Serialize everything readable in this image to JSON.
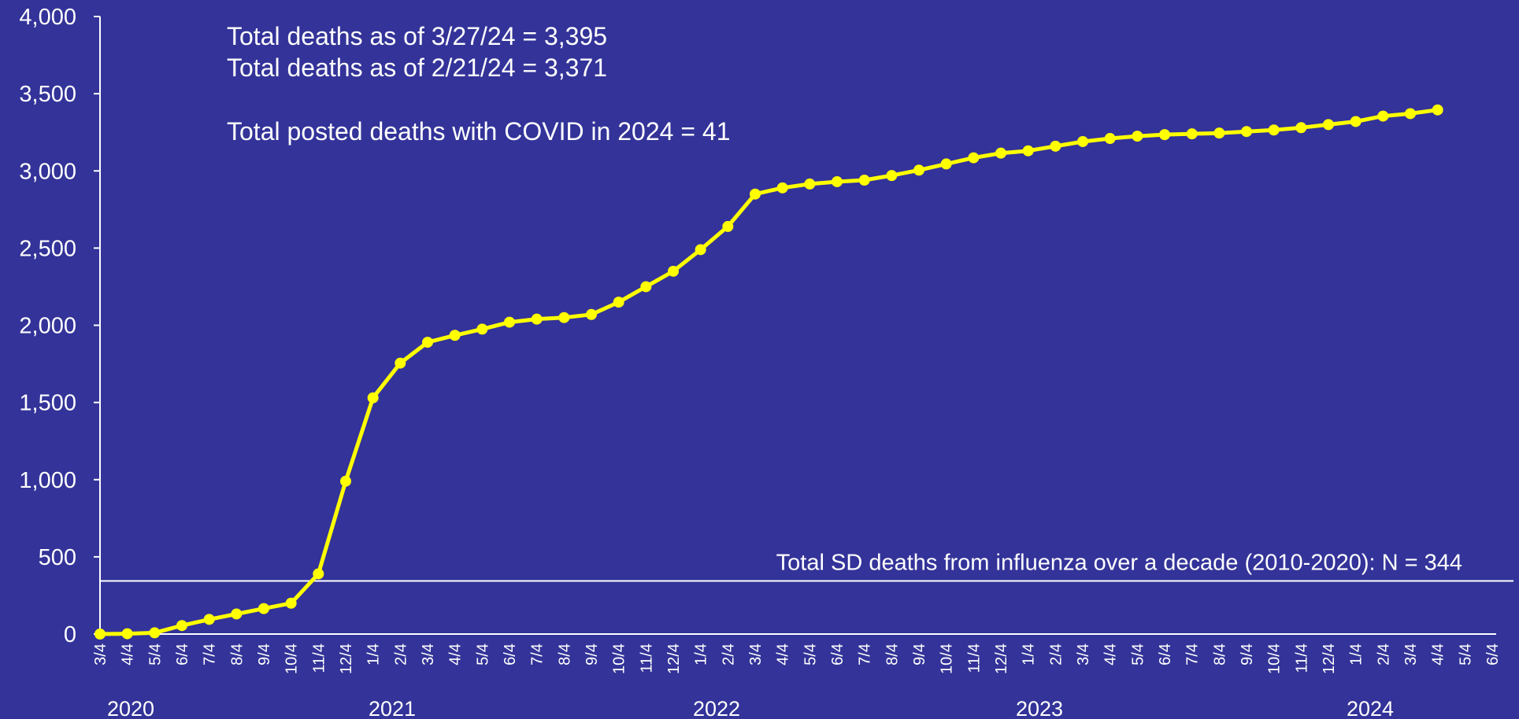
{
  "chart_data": {
    "type": "line",
    "annotations": [
      "Total deaths as of 3/27/24 = 3,395",
      "Total deaths as of 2/21/24 = 3,371",
      "Total posted deaths with COVID in 2024 = 41"
    ],
    "categories": [
      "3/4",
      "4/4",
      "5/4",
      "6/4",
      "7/4",
      "8/4",
      "9/4",
      "10/4",
      "11/4",
      "12/4",
      "1/4",
      "2/4",
      "3/4",
      "4/4",
      "5/4",
      "6/4",
      "7/4",
      "8/4",
      "9/4",
      "10/4",
      "11/4",
      "12/4",
      "1/4",
      "2/4",
      "3/4",
      "4/4",
      "5/4",
      "6/4",
      "7/4",
      "8/4",
      "9/4",
      "10/4",
      "11/4",
      "12/4",
      "1/4",
      "2/4",
      "3/4",
      "4/4",
      "5/4",
      "6/4",
      "7/4",
      "8/4",
      "9/4",
      "10/4",
      "11/4",
      "12/4",
      "1/4",
      "2/4",
      "3/4",
      "4/4",
      "5/4",
      "6/4"
    ],
    "year_labels": [
      "2020",
      "2021",
      "2022",
      "2023",
      "2024"
    ],
    "series": [
      {
        "name": "Total deaths",
        "color": "#ffff00",
        "values": [
          0,
          2,
          8,
          55,
          95,
          130,
          165,
          200,
          390,
          990,
          1530,
          1755,
          1890,
          1935,
          1975,
          2020,
          2040,
          2050,
          2070,
          2150,
          2250,
          2350,
          2490,
          2640,
          2850,
          2890,
          2915,
          2930,
          2940,
          2970,
          3005,
          3045,
          3085,
          3115,
          3130,
          3160,
          3190,
          3210,
          3225,
          3235,
          3240,
          3245,
          3255,
          3265,
          3280,
          3300,
          3320,
          3355,
          3371,
          3395,
          null,
          null
        ]
      }
    ],
    "reference_line": {
      "value": 344,
      "label": "Total SD deaths from influenza over a decade (2010-2020):  N = 344",
      "color": "#ffffff"
    },
    "ylim": [
      0,
      4000
    ],
    "yticks": [
      0,
      {
        "value": 500,
        "label": "500"
      },
      {
        "value": 1000,
        "label": "1,000"
      },
      {
        "value": 1500,
        "label": "1,500"
      },
      {
        "value": 2000,
        "label": "2,000"
      },
      {
        "value": 2500,
        "label": "2,500"
      },
      {
        "value": 3000,
        "label": "3,000"
      },
      {
        "value": 3500,
        "label": "3,500"
      },
      {
        "value": 4000,
        "label": "4,000"
      }
    ],
    "grid": false
  }
}
